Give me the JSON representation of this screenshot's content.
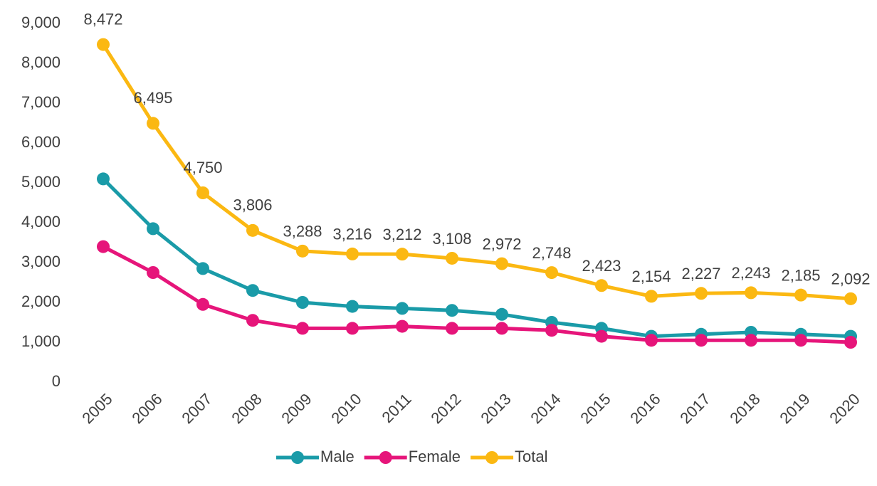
{
  "chart_data": {
    "type": "line",
    "categories": [
      "2005",
      "2006",
      "2007",
      "2008",
      "2009",
      "2010",
      "2011",
      "2012",
      "2013",
      "2014",
      "2015",
      "2016",
      "2017",
      "2018",
      "2019",
      "2020"
    ],
    "series": [
      {
        "name": "Male",
        "color": "#1a9ba8",
        "values": [
          5100,
          3850,
          2850,
          2300,
          2000,
          1900,
          1850,
          1800,
          1700,
          1500,
          1350,
          1150,
          1200,
          1250,
          1200,
          1150
        ]
      },
      {
        "name": "Female",
        "color": "#e6157a",
        "values": [
          3400,
          2750,
          1950,
          1550,
          1350,
          1350,
          1400,
          1350,
          1350,
          1300,
          1150,
          1050,
          1050,
          1050,
          1050,
          1000
        ]
      },
      {
        "name": "Total",
        "color": "#fbb812",
        "values": [
          8472,
          6495,
          4750,
          3806,
          3288,
          3216,
          3212,
          3108,
          2972,
          2748,
          2423,
          2154,
          2227,
          2243,
          2185,
          2092
        ],
        "value_labels": [
          "8,472",
          "6,495",
          "4,750",
          "3,806",
          "3,288",
          "3,216",
          "3,212",
          "3,108",
          "2,972",
          "2,748",
          "2,423",
          "2,154",
          "2,227",
          "2,243",
          "2,185",
          "2,092"
        ]
      }
    ],
    "ylim": [
      0,
      9000
    ],
    "yticks": [
      0,
      {
        "value": 1000,
        "label": "1,000"
      },
      {
        "value": 2000,
        "label": "2,000"
      },
      {
        "value": 3000,
        "label": "3,000"
      },
      {
        "value": 4000,
        "label": "4,000"
      },
      {
        "value": 5000,
        "label": "5,000"
      },
      {
        "value": 6000,
        "label": "6,000"
      },
      {
        "value": 7000,
        "label": "7,000"
      },
      {
        "value": 8000,
        "label": "8,000"
      },
      {
        "value": 9000,
        "label": "9,000"
      }
    ],
    "grid": false,
    "legend": "bottom"
  }
}
